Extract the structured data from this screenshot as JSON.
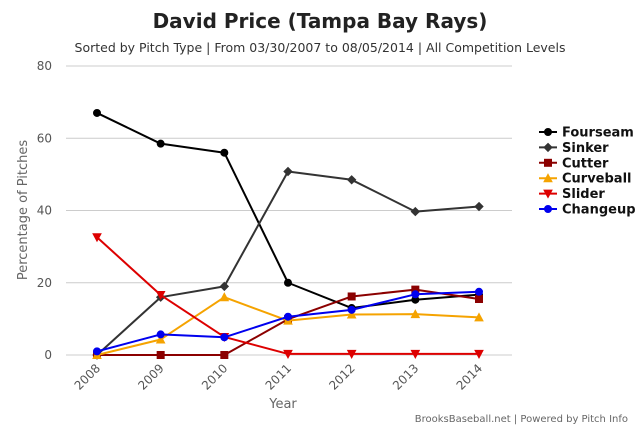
{
  "chart_data": {
    "type": "line",
    "title": "David Price (Tampa Bay Rays)",
    "subtitle": "Sorted by Pitch Type | From 03/30/2007 to 08/05/2014 | All Competition Levels",
    "xlabel": "Year",
    "ylabel": "Percentage of Pitches",
    "categories": [
      "2008",
      "2009",
      "2010",
      "2011",
      "2012",
      "2013",
      "2014"
    ],
    "ylim": [
      0,
      80
    ],
    "yticks": [
      0,
      20,
      40,
      60,
      80
    ],
    "grid": true,
    "legend_position": "right",
    "series": [
      {
        "name": "Fourseam",
        "color": "#000000",
        "marker": "circle",
        "values": [
          67,
          58.5,
          56,
          20,
          13,
          15.3,
          16.7
        ]
      },
      {
        "name": "Sinker",
        "color": "#333333",
        "marker": "diamond",
        "values": [
          0,
          16,
          19,
          50.8,
          48.5,
          39.7,
          41.1
        ]
      },
      {
        "name": "Cutter",
        "color": "#8b0000",
        "marker": "square",
        "values": [
          0,
          0,
          0,
          9.9,
          16.2,
          18.1,
          15.5
        ]
      },
      {
        "name": "Curveball",
        "color": "#f5a300",
        "marker": "triangle-up",
        "values": [
          0,
          4.3,
          16,
          9.5,
          11.2,
          11.3,
          10.4
        ]
      },
      {
        "name": "Slider",
        "color": "#dd0000",
        "marker": "triangle-down",
        "values": [
          32.6,
          16.6,
          5,
          0.3,
          0.3,
          0.3,
          0.3
        ]
      },
      {
        "name": "Changeup",
        "color": "#0000ee",
        "marker": "circle",
        "values": [
          1,
          5.7,
          4.9,
          10.6,
          12.5,
          16.8,
          17.5
        ]
      }
    ],
    "credit": "BrooksBaseball.net | Powered by Pitch Info"
  }
}
